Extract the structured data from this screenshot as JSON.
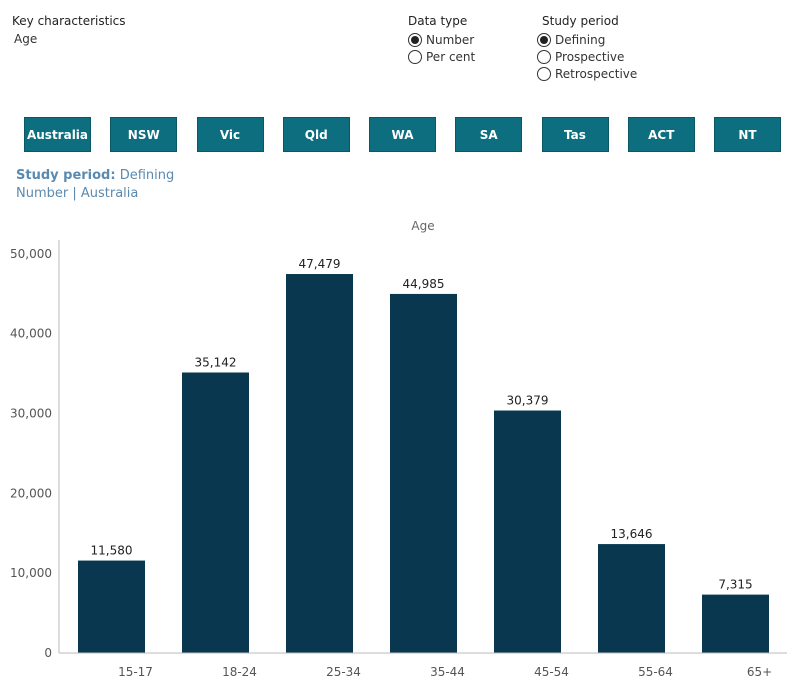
{
  "controls": {
    "key_characteristics": {
      "title": "Key characteristics",
      "value": "Age"
    },
    "data_type": {
      "title": "Data type",
      "options": [
        "Number",
        "Per cent"
      ],
      "selected": "Number"
    },
    "study_period": {
      "title": "Study period",
      "options": [
        "Defining",
        "Prospective",
        "Retrospective"
      ],
      "selected": "Defining"
    }
  },
  "states": [
    "Australia",
    "NSW",
    "Vic",
    "Qld",
    "WA",
    "SA",
    "Tas",
    "ACT",
    "NT"
  ],
  "subheading": {
    "label": "Study period:",
    "value": "Defining",
    "line2": "Number | Australia"
  },
  "colors": {
    "bar": "#08374f",
    "button": "#0d6e7f",
    "subheading": "#5b8ab0"
  },
  "chart_data": {
    "type": "bar",
    "title": "Age",
    "categories": [
      "15-17",
      "18-24",
      "25-34",
      "35-44",
      "45-54",
      "55-64",
      "65+"
    ],
    "values": [
      11580,
      35142,
      47479,
      44985,
      30379,
      13646,
      7315
    ],
    "value_labels": [
      "11,580",
      "35,142",
      "47,479",
      "44,985",
      "30,379",
      "13,646",
      "7,315"
    ],
    "yticks": [
      0,
      10000,
      20000,
      30000,
      40000,
      50000
    ],
    "ytick_labels": [
      "0",
      "10,000",
      "20,000",
      "30,000",
      "40,000",
      "50,000"
    ],
    "ylim": [
      0,
      52000
    ],
    "grid": false
  }
}
